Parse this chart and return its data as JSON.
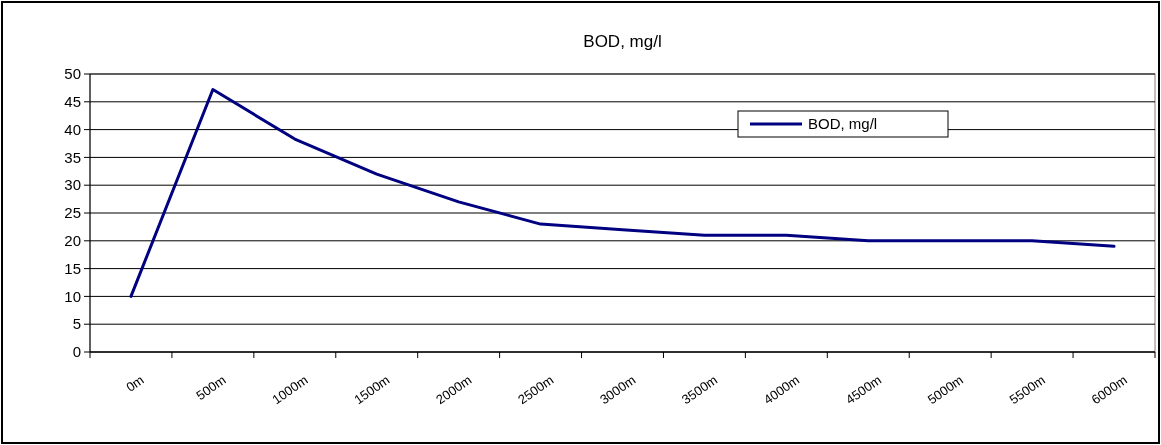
{
  "chart_data": {
    "type": "line",
    "title": "BOD, mg/l",
    "categories": [
      "0m",
      "500m",
      "1000m",
      "1500m",
      "2000m",
      "2500m",
      "3000m",
      "3500m",
      "4000m",
      "4500m",
      "5000m",
      "5500m",
      "6000m"
    ],
    "series": [
      {
        "name": "BOD, mg/l",
        "color": "#000080",
        "values": [
          10,
          47.2,
          38.3,
          32,
          27,
          23,
          22,
          21,
          21,
          20,
          20,
          20,
          19
        ]
      }
    ],
    "ylim": [
      0,
      50
    ],
    "yticks": [
      0,
      5,
      10,
      15,
      20,
      25,
      30,
      35,
      40,
      45,
      50
    ],
    "grid": "y",
    "legend": "top right",
    "marker": "none",
    "line_style": "solid"
  }
}
